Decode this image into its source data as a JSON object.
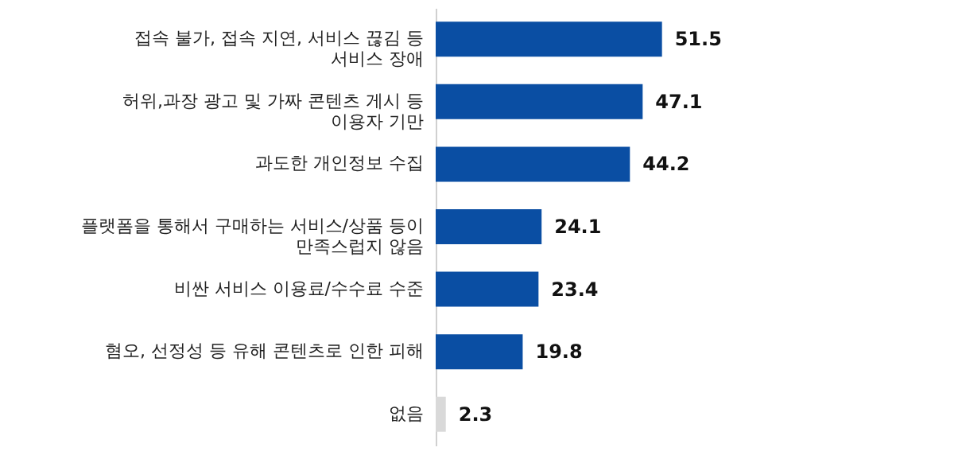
{
  "chart_data": {
    "type": "bar",
    "orientation": "horizontal",
    "categories": [
      "접속 불가, 접속 지연, 서비스 끊김 등\n서비스 장애",
      "허위,과장 광고 및 가짜 콘텐츠 게시 등\n이용자 기만",
      "과도한 개인정보 수집",
      "플랫폼을 통해서 구매하는 서비스/상품 등이\n만족스럽지 않음",
      "비싼 서비스 이용료/수수료 수준",
      "혐오, 선정성 등 유해 콘텐츠로 인한 피해",
      "없음"
    ],
    "values": [
      51.5,
      47.1,
      44.2,
      24.1,
      23.4,
      19.8,
      2.3
    ],
    "colors": [
      "#0a4ea3",
      "#0a4ea3",
      "#0a4ea3",
      "#0a4ea3",
      "#0a4ea3",
      "#0a4ea3",
      "#d9d9d9"
    ],
    "tick_labels": "y",
    "data_labels": true,
    "grid": false
  }
}
